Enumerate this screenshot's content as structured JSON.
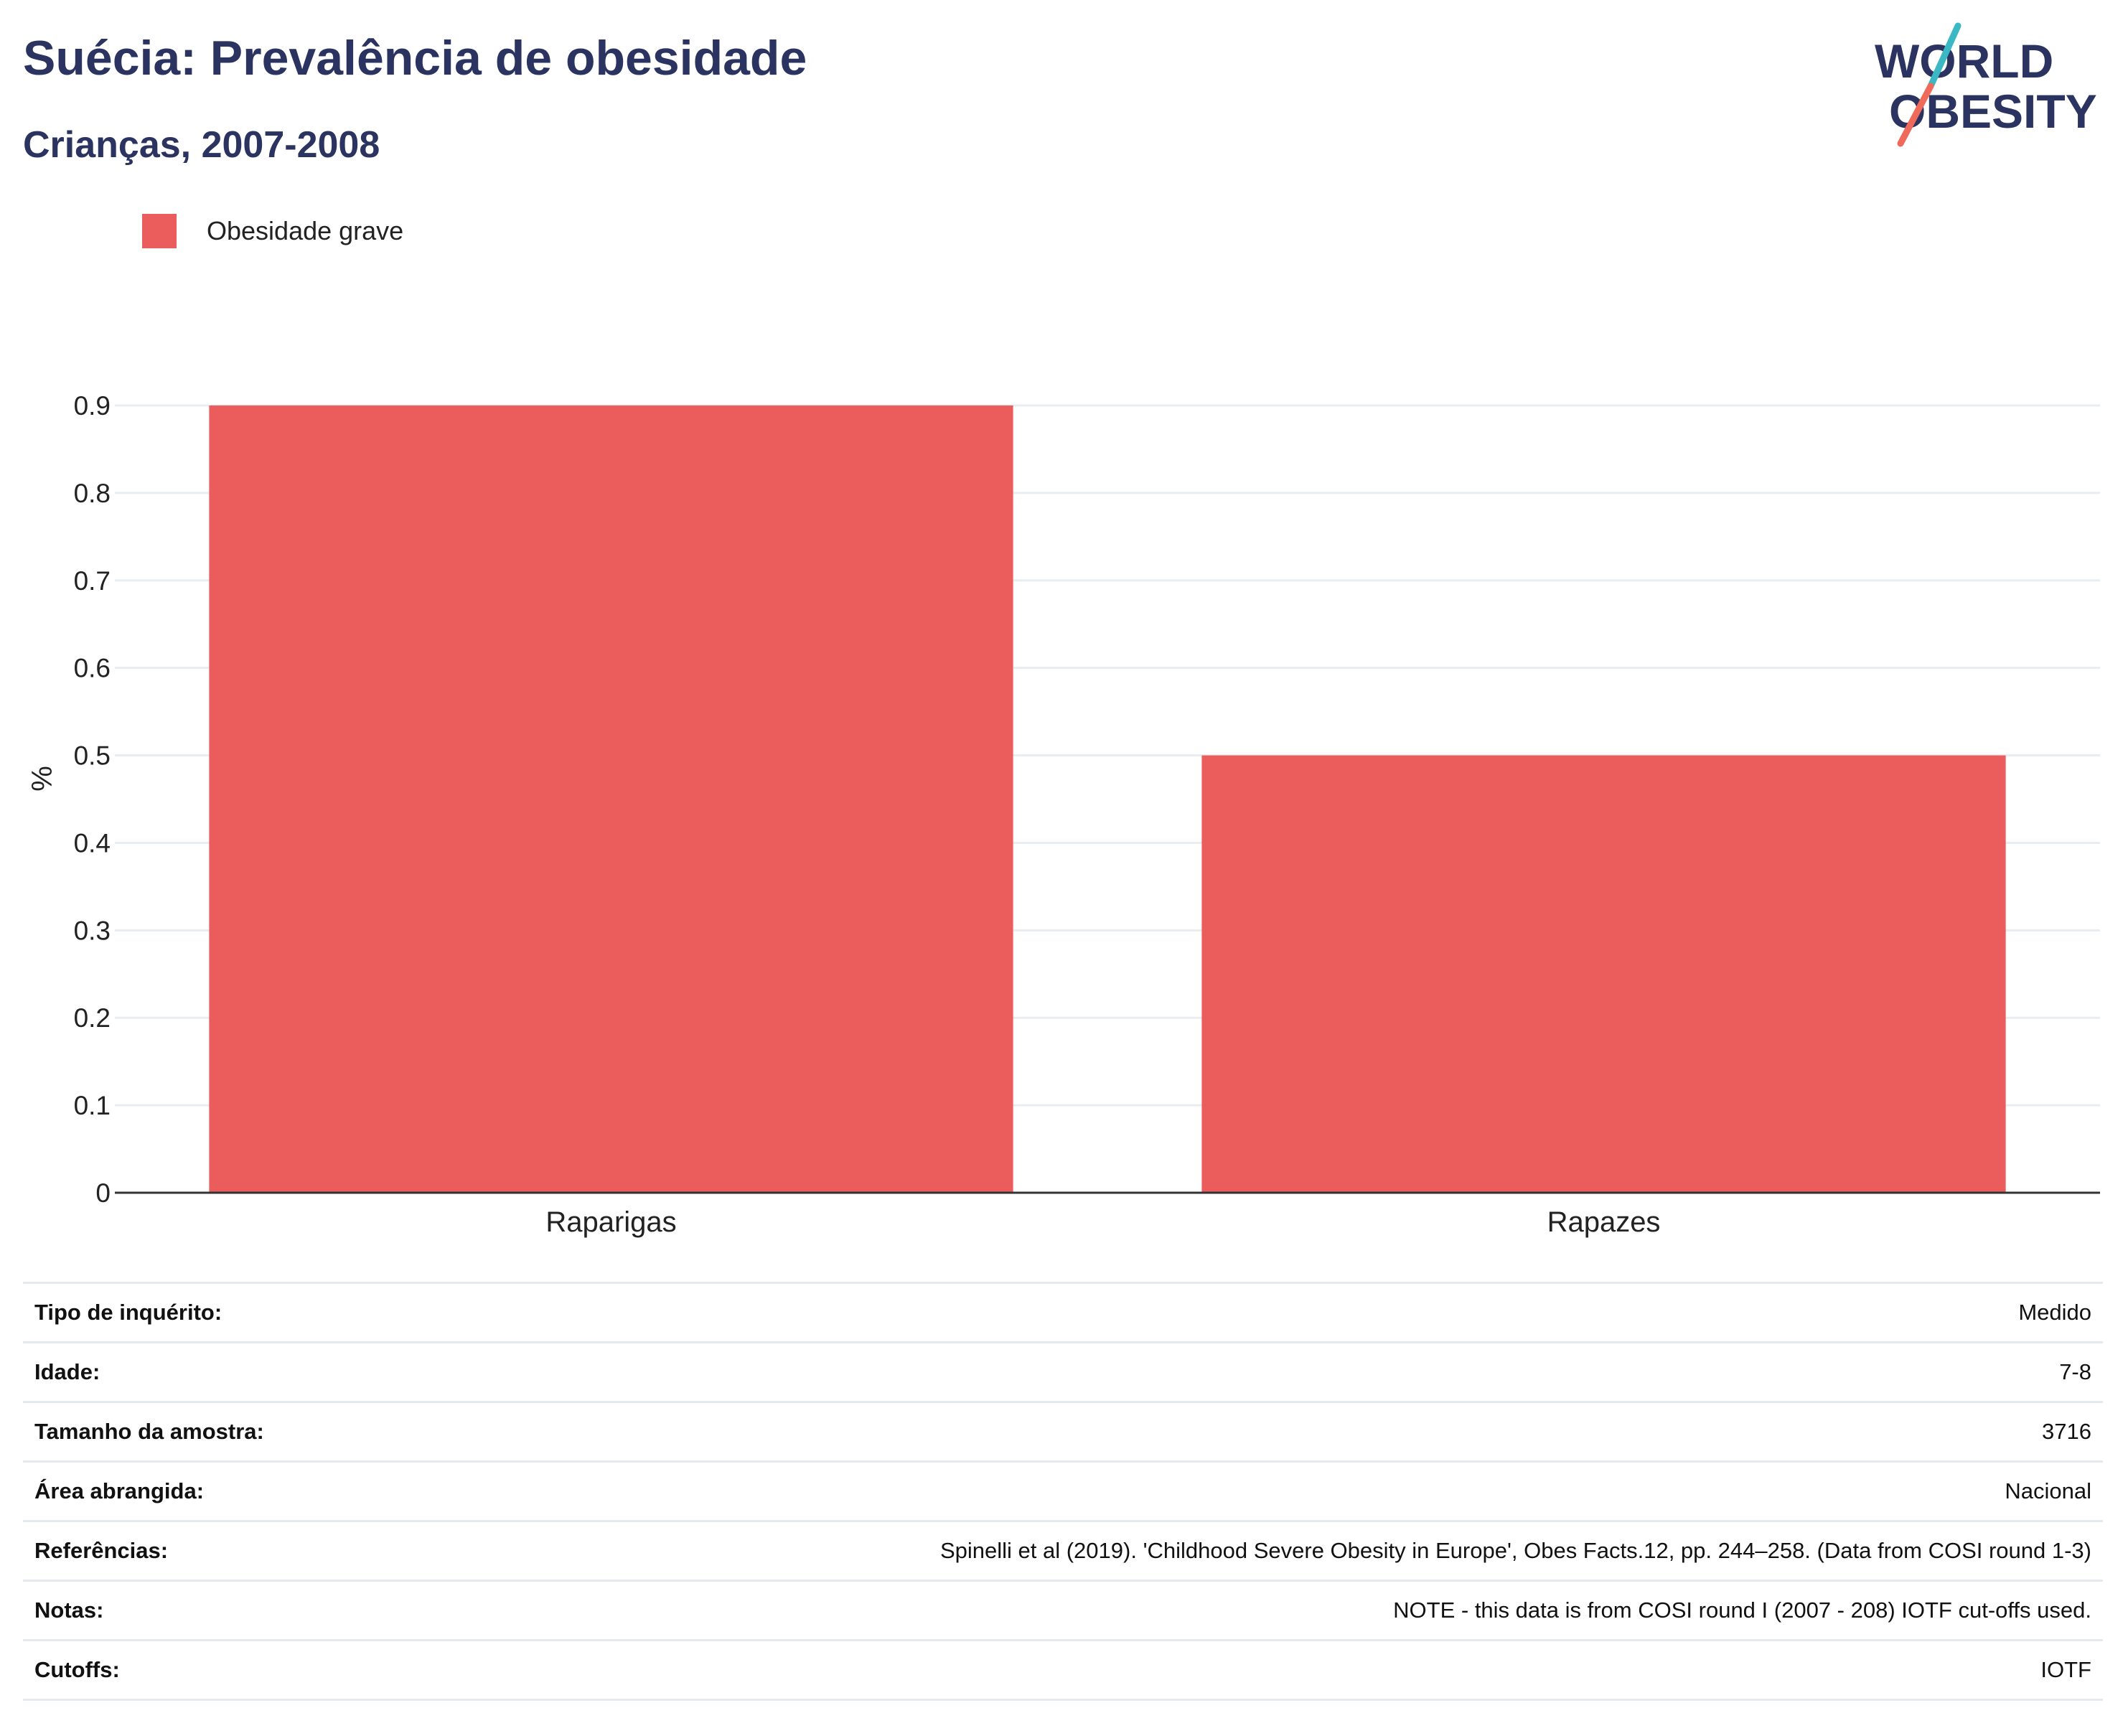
{
  "header": {
    "title": "Suécia: Prevalência de obesidade",
    "subtitle": "Crianças, 2007-2008"
  },
  "logo": {
    "line1": "WORLD",
    "line2": "OBESITY",
    "text_color": "#2b3360",
    "accent_teal": "#3bb8c3",
    "accent_coral": "#ef6a5a"
  },
  "legend": {
    "label": "Obesidade grave",
    "color": "#eb5c5c"
  },
  "chart_data": {
    "type": "bar",
    "categories": [
      "Raparigas",
      "Rapazes"
    ],
    "series": [
      {
        "name": "Obesidade grave",
        "values": [
          0.9,
          0.5
        ],
        "color": "#eb5c5c"
      }
    ],
    "ylabel": "%",
    "ylim": [
      0,
      0.9
    ],
    "yticks": [
      "0",
      "0.1",
      "0.2",
      "0.3",
      "0.4",
      "0.5",
      "0.6",
      "0.7",
      "0.8",
      "0.9"
    ],
    "grid": true,
    "legend_position": "top-left"
  },
  "info": [
    {
      "label": "Tipo de inquérito:",
      "value": "Medido"
    },
    {
      "label": "Idade:",
      "value": "7-8"
    },
    {
      "label": "Tamanho da amostra:",
      "value": "3716"
    },
    {
      "label": "Área abrangida:",
      "value": "Nacional"
    },
    {
      "label": "Referências:",
      "value": "Spinelli et al (2019). 'Childhood Severe Obesity in Europe', Obes Facts.12, pp. 244–258. (Data from COSI round 1-3)"
    },
    {
      "label": "Notas:",
      "value": "NOTE - this data is from COSI round I (2007 - 208) IOTF cut-offs used."
    },
    {
      "label": "Cutoffs:",
      "value": "IOTF"
    }
  ]
}
